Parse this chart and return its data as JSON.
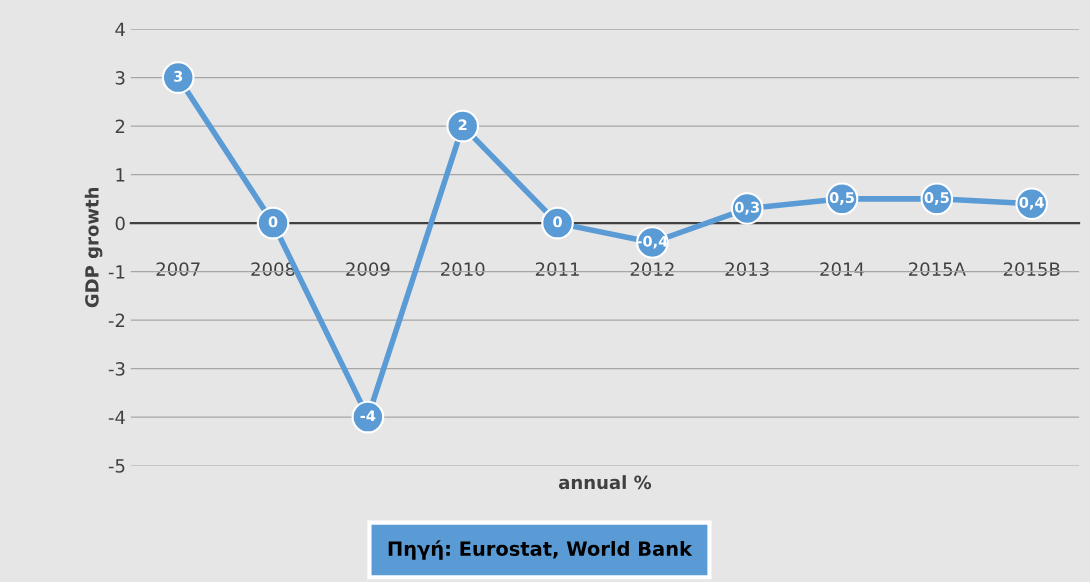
{
  "chart_data": {
    "type": "line",
    "xlabel": "annual %",
    "ylabel": "GDP growth",
    "categories": [
      "2007",
      "2008",
      "2009",
      "2010",
      "2011",
      "2012",
      "2013",
      "2014",
      "2015A",
      "2015B"
    ],
    "series": [
      {
        "color": "#5b9bd5",
        "values": [
          3,
          0,
          -4,
          2,
          0,
          -0.4,
          0.3,
          0.5,
          0.5,
          0.4
        ],
        "value_labels": [
          "3",
          "0",
          "-4",
          "2",
          "0",
          "-0,4",
          "0,3",
          "0,5",
          "0,5",
          "0,4"
        ]
      }
    ],
    "ylim": [
      -5,
      4
    ],
    "yticks": [
      -5,
      -4,
      -3,
      -2,
      -1,
      0,
      1,
      2,
      3,
      4
    ],
    "grid": "y",
    "marker": "circle",
    "line_style": "solid",
    "legend": false,
    "annotations": [
      "Πηγή: Eurostat, World Bank"
    ]
  }
}
